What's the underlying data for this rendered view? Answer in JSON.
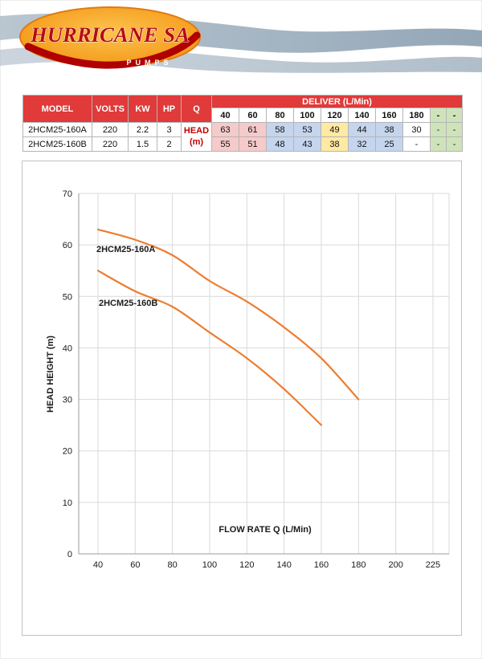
{
  "brand": {
    "name": "HURRICANE SA",
    "tagline": "PUMPS"
  },
  "table": {
    "columns": {
      "model": "MODEL",
      "volts": "VOLTS",
      "kw": "KW",
      "hp": "HP",
      "q": "Q",
      "deliver": "DELIVER (L/Min)"
    },
    "q_unit_line1": "HEAD",
    "q_unit_line2": "(m)",
    "flow_headers": [
      "40",
      "60",
      "80",
      "100",
      "120",
      "140",
      "160",
      "180",
      "-",
      "-"
    ],
    "rows": [
      {
        "model": "2HCM25-160A",
        "volts": "220",
        "kw": "2.2",
        "hp": "3",
        "heads": [
          "63",
          "61",
          "58",
          "53",
          "49",
          "44",
          "38",
          "30",
          "-",
          "-"
        ]
      },
      {
        "model": "2HCM25-160B",
        "volts": "220",
        "kw": "1.5",
        "hp": "2",
        "heads": [
          "55",
          "51",
          "48",
          "43",
          "38",
          "32",
          "25",
          "-",
          "-",
          "-"
        ]
      }
    ]
  },
  "chart_data": {
    "type": "line",
    "title": "",
    "xlabel": "FLOW RATE Q (L/Min)",
    "ylabel": "HEAD HEIGHT (m)",
    "x_ticks": [
      40,
      60,
      80,
      100,
      120,
      140,
      160,
      180,
      200,
      225
    ],
    "y_ticks": [
      0,
      10,
      20,
      30,
      40,
      50,
      60,
      70
    ],
    "ylim": [
      0,
      70
    ],
    "grid": true,
    "legend_position": "inline-labels",
    "line_color": "#ED7D31",
    "series": [
      {
        "name": "2HCM25-160A",
        "x": [
          40,
          60,
          80,
          100,
          120,
          140,
          160,
          180
        ],
        "values": [
          63,
          61,
          58,
          53,
          49,
          44,
          38,
          30
        ]
      },
      {
        "name": "2HCM25-160B",
        "x": [
          40,
          60,
          80,
          100,
          120,
          140,
          160
        ],
        "values": [
          55,
          51,
          48,
          43,
          38,
          32,
          25
        ]
      }
    ]
  }
}
